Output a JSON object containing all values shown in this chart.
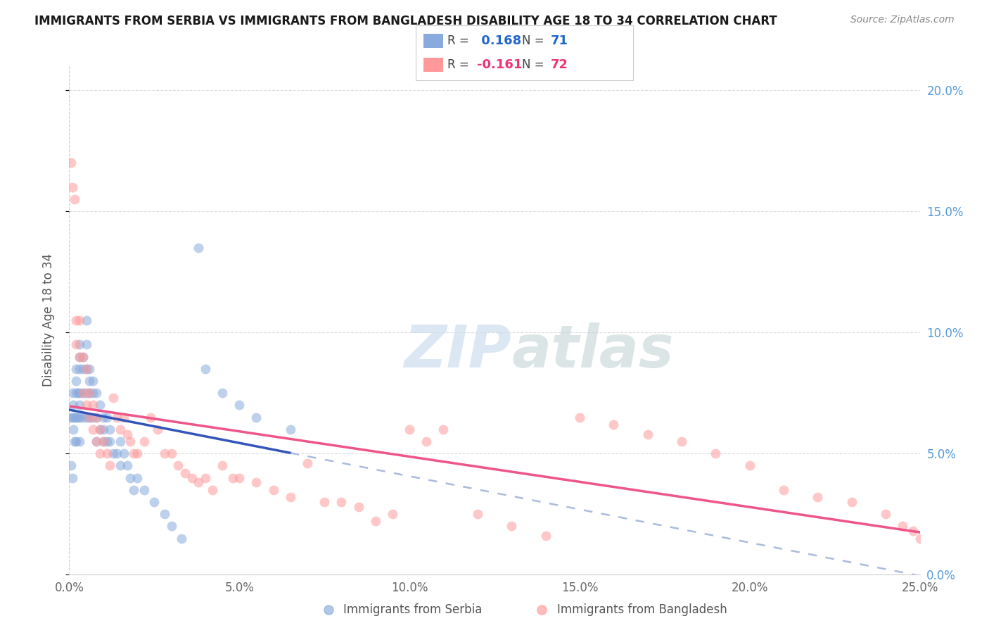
{
  "title": "IMMIGRANTS FROM SERBIA VS IMMIGRANTS FROM BANGLADESH DISABILITY AGE 18 TO 34 CORRELATION CHART",
  "source": "Source: ZipAtlas.com",
  "ylabel": "Disability Age 18 to 34",
  "legend1_label": "Immigrants from Serbia",
  "legend2_label": "Immigrants from Bangladesh",
  "R1": 0.168,
  "N1": 71,
  "R2": -0.161,
  "N2": 72,
  "color_serbia": "#88AADD",
  "color_bangladesh": "#FF9999",
  "color_serbia_line": "#3355BB",
  "color_bangladesh_line": "#EE5588",
  "color_serbia_dash": "#AABBDD",
  "xlim": [
    0.0,
    0.25
  ],
  "ylim": [
    0.0,
    0.21
  ],
  "serbia_x": [
    0.0005,
    0.0005,
    0.001,
    0.001,
    0.001,
    0.0012,
    0.0012,
    0.0015,
    0.0015,
    0.002,
    0.002,
    0.002,
    0.002,
    0.002,
    0.0025,
    0.0025,
    0.003,
    0.003,
    0.003,
    0.003,
    0.003,
    0.003,
    0.003,
    0.004,
    0.004,
    0.004,
    0.004,
    0.005,
    0.005,
    0.005,
    0.005,
    0.005,
    0.006,
    0.006,
    0.006,
    0.006,
    0.007,
    0.007,
    0.007,
    0.008,
    0.008,
    0.008,
    0.009,
    0.009,
    0.01,
    0.01,
    0.01,
    0.011,
    0.011,
    0.012,
    0.012,
    0.013,
    0.014,
    0.015,
    0.015,
    0.016,
    0.017,
    0.018,
    0.019,
    0.02,
    0.022,
    0.025,
    0.028,
    0.03,
    0.033,
    0.038,
    0.04,
    0.045,
    0.05,
    0.055,
    0.065
  ],
  "serbia_y": [
    0.065,
    0.045,
    0.075,
    0.065,
    0.04,
    0.07,
    0.06,
    0.065,
    0.055,
    0.085,
    0.08,
    0.075,
    0.065,
    0.055,
    0.075,
    0.065,
    0.095,
    0.09,
    0.085,
    0.075,
    0.07,
    0.065,
    0.055,
    0.09,
    0.085,
    0.075,
    0.065,
    0.105,
    0.095,
    0.085,
    0.075,
    0.065,
    0.085,
    0.08,
    0.075,
    0.065,
    0.08,
    0.075,
    0.065,
    0.075,
    0.065,
    0.055,
    0.07,
    0.06,
    0.065,
    0.06,
    0.055,
    0.065,
    0.055,
    0.06,
    0.055,
    0.05,
    0.05,
    0.055,
    0.045,
    0.05,
    0.045,
    0.04,
    0.035,
    0.04,
    0.035,
    0.03,
    0.025,
    0.02,
    0.015,
    0.135,
    0.085,
    0.075,
    0.07,
    0.065,
    0.06
  ],
  "bangladesh_x": [
    0.0005,
    0.001,
    0.0015,
    0.002,
    0.002,
    0.003,
    0.003,
    0.004,
    0.004,
    0.005,
    0.005,
    0.006,
    0.006,
    0.007,
    0.007,
    0.008,
    0.008,
    0.009,
    0.009,
    0.01,
    0.011,
    0.012,
    0.013,
    0.014,
    0.015,
    0.016,
    0.017,
    0.018,
    0.019,
    0.02,
    0.022,
    0.024,
    0.026,
    0.028,
    0.03,
    0.032,
    0.034,
    0.036,
    0.038,
    0.04,
    0.042,
    0.045,
    0.048,
    0.05,
    0.055,
    0.06,
    0.065,
    0.07,
    0.075,
    0.08,
    0.085,
    0.09,
    0.095,
    0.1,
    0.105,
    0.11,
    0.12,
    0.13,
    0.14,
    0.15,
    0.16,
    0.17,
    0.18,
    0.19,
    0.2,
    0.21,
    0.22,
    0.23,
    0.24,
    0.245,
    0.248,
    0.25
  ],
  "bangladesh_y": [
    0.17,
    0.16,
    0.155,
    0.105,
    0.095,
    0.105,
    0.09,
    0.09,
    0.075,
    0.085,
    0.07,
    0.075,
    0.065,
    0.07,
    0.06,
    0.065,
    0.055,
    0.06,
    0.05,
    0.055,
    0.05,
    0.045,
    0.073,
    0.065,
    0.06,
    0.065,
    0.058,
    0.055,
    0.05,
    0.05,
    0.055,
    0.065,
    0.06,
    0.05,
    0.05,
    0.045,
    0.042,
    0.04,
    0.038,
    0.04,
    0.035,
    0.045,
    0.04,
    0.04,
    0.038,
    0.035,
    0.032,
    0.046,
    0.03,
    0.03,
    0.028,
    0.022,
    0.025,
    0.06,
    0.055,
    0.06,
    0.025,
    0.02,
    0.016,
    0.065,
    0.062,
    0.058,
    0.055,
    0.05,
    0.045,
    0.035,
    0.032,
    0.03,
    0.025,
    0.02,
    0.018,
    0.015
  ]
}
